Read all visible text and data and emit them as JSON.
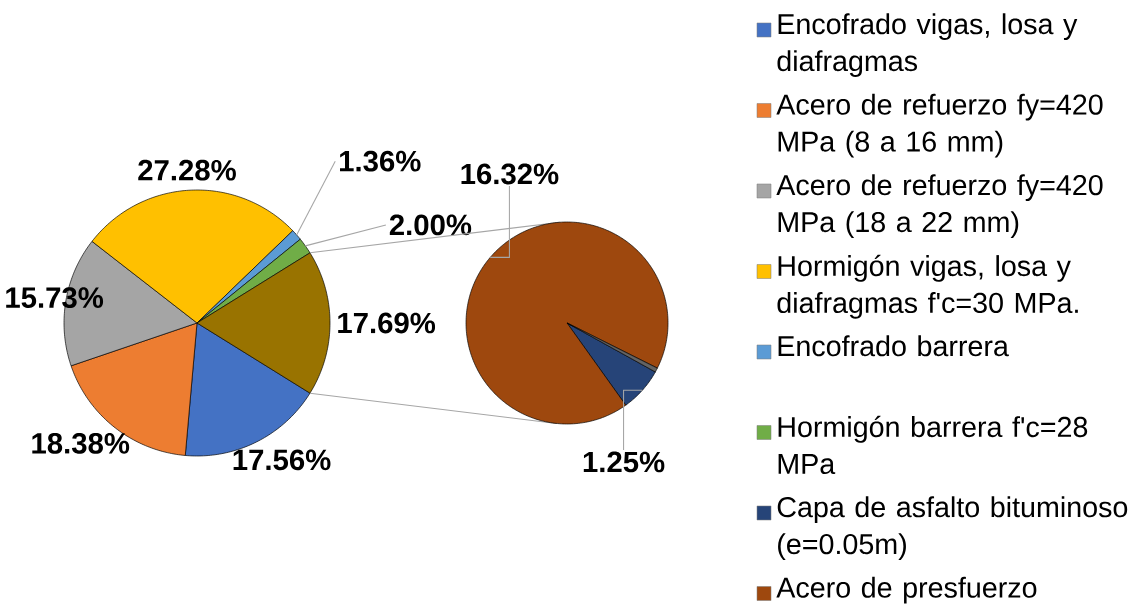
{
  "chart_data": [
    {
      "type": "pie",
      "categories": [
        "Encofrado vigas, losa y diafragmas",
        "Acero de refuerzo fy=420 MPa (8 a 16 mm)",
        "Acero de refuerzo fy=420 MPa (18 a 22 mm)",
        "Hormigón vigas, losa y diafragmas f'c=30 MPa.",
        "Encofrado barrera",
        "Hormigón barrera f'c=28 MPa",
        null
      ],
      "values": [
        17.56,
        18.38,
        15.73,
        27.28,
        1.36,
        2.0,
        17.69
      ],
      "colors": [
        "#4472c4",
        "#ed7d31",
        "#a5a5a5",
        "#ffc000",
        "#5b9bd5",
        "#70ad47",
        "#997300"
      ],
      "value_labels": [
        "17.56%",
        "18.38%",
        "15.73%",
        "27.28%",
        "1.36%",
        "2.00%",
        "17.69%"
      ],
      "legend": "right"
    },
    {
      "type": "pie",
      "categories": [
        "Capa de asfalto bituminoso (e=0.05m)",
        "Acero de presfuerzo",
        null
      ],
      "values": [
        1.25,
        16.32,
        0.12
      ],
      "colors": [
        "#264478",
        "#9e480e",
        "#636363"
      ],
      "value_labels": [
        "1.25%",
        "16.32%",
        null
      ],
      "legend": "right"
    }
  ]
}
